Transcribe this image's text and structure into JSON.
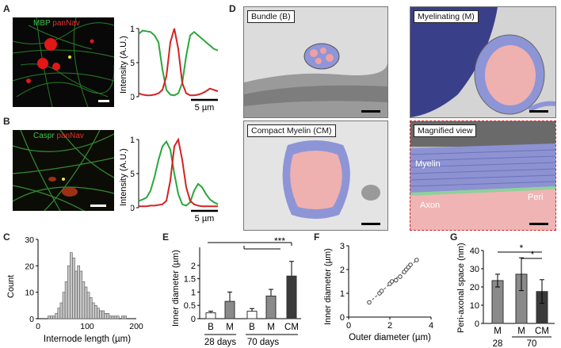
{
  "panels": {
    "A": {
      "letter": "A",
      "stain_1": "MBP",
      "stain_2": "panNav",
      "ylabel": "Intensity (A.U.)",
      "yticks": [
        "0",
        "0.5",
        "1"
      ],
      "scale": "5 µm"
    },
    "B": {
      "letter": "B",
      "stain_1": "Caspr",
      "stain_2": "panNav",
      "ylabel": "Intensity (A.U.)",
      "yticks": [
        "0",
        "0.5",
        "1"
      ],
      "scale": "5 µm"
    },
    "C": {
      "letter": "C",
      "xlabel": "Internode length (µm)",
      "ylabel": "Count"
    },
    "D": {
      "letter": "D",
      "titles": [
        "Bundle (B)",
        "Myelinating (M)",
        "Compact Myelin (CM)",
        "Magnified view"
      ],
      "labels": {
        "myelin": "Myelin",
        "peri": "Peri",
        "axon": "Axon"
      }
    },
    "E": {
      "letter": "E",
      "ylabel": "Inner diameter (µm)",
      "groups": [
        "28 days",
        "70 days"
      ],
      "significance": "***"
    },
    "F": {
      "letter": "F",
      "xlabel": "Outer diameter (µm)",
      "ylabel": "Inner diameter (µm)"
    },
    "G": {
      "letter": "G",
      "ylabel": "Peri-axonal space (nm)",
      "groups": [
        "28",
        "70"
      ],
      "significance": [
        "*",
        "*"
      ]
    }
  },
  "colors": {
    "green": "#2aa63a",
    "red": "#d42222",
    "myelin_overlay": "#7f86d6",
    "axon_overlay": "#f1a3a3",
    "peri_overlay": "#8fd19a"
  },
  "chart_data": [
    {
      "type": "line",
      "panel": "A",
      "title": "",
      "xlabel": "",
      "ylabel": "Intensity (A.U.)",
      "ylim": [
        0,
        1
      ],
      "x": [
        0,
        1,
        2,
        3,
        4,
        5,
        6,
        7,
        8,
        9,
        10,
        11,
        12,
        13,
        14,
        15,
        16,
        17,
        18,
        19,
        20
      ],
      "series": [
        {
          "color": "green",
          "values": [
            0.92,
            0.97,
            0.96,
            0.95,
            0.9,
            0.8,
            0.4,
            0.1,
            0.03,
            0.02,
            0.05,
            0.2,
            0.6,
            0.9,
            0.95,
            0.9,
            0.85,
            0.8,
            0.75,
            0.7,
            0.68
          ]
        },
        {
          "color": "red",
          "values": [
            0.05,
            0.03,
            0.02,
            0.02,
            0.03,
            0.05,
            0.1,
            0.3,
            0.8,
            1.0,
            0.7,
            0.2,
            0.05,
            0.02,
            0.02,
            0.03,
            0.05,
            0.08,
            0.12,
            0.1,
            0.08
          ]
        }
      ]
    },
    {
      "type": "line",
      "panel": "B",
      "title": "",
      "xlabel": "",
      "ylabel": "Intensity (A.U.)",
      "ylim": [
        0,
        1
      ],
      "x": [
        0,
        1,
        2,
        3,
        4,
        5,
        6,
        7,
        8,
        9,
        10,
        11,
        12,
        13,
        14,
        15,
        16,
        17,
        18,
        19,
        20
      ],
      "series": [
        {
          "color": "green",
          "values": [
            0.1,
            0.12,
            0.15,
            0.25,
            0.45,
            0.7,
            0.9,
            0.97,
            0.85,
            0.5,
            0.2,
            0.05,
            0.03,
            0.08,
            0.25,
            0.35,
            0.3,
            0.2,
            0.12,
            0.08,
            0.05
          ]
        },
        {
          "color": "red",
          "values": [
            0.02,
            0.02,
            0.02,
            0.03,
            0.03,
            0.04,
            0.05,
            0.1,
            0.4,
            0.9,
            1.0,
            0.7,
            0.3,
            0.1,
            0.05,
            0.03,
            0.02,
            0.02,
            0.02,
            0.02,
            0.02
          ]
        }
      ]
    },
    {
      "type": "bar",
      "panel": "C",
      "title": "",
      "xlabel": "Internode length (µm)",
      "ylabel": "Count",
      "xlim": [
        0,
        200
      ],
      "ylim": [
        0,
        30
      ],
      "xticks": [
        0,
        100,
        200
      ],
      "yticks": [
        0,
        10,
        20,
        30
      ],
      "bin_width": 5,
      "bins": [
        20,
        25,
        30,
        35,
        40,
        45,
        50,
        55,
        60,
        65,
        70,
        75,
        80,
        85,
        90,
        95,
        100,
        105,
        110,
        115,
        120,
        125,
        130,
        135,
        140,
        145,
        150,
        155,
        160,
        165,
        170,
        175
      ],
      "values": [
        1,
        1,
        1,
        2,
        4,
        6,
        10,
        14,
        20,
        25,
        23,
        18,
        20,
        18,
        14,
        12,
        10,
        8,
        6,
        5,
        4,
        3,
        3,
        2,
        2,
        1,
        1,
        1,
        1,
        0,
        1,
        1
      ]
    },
    {
      "type": "bar",
      "panel": "E",
      "title": "",
      "xlabel": "",
      "ylabel": "Inner diameter (µm)",
      "ylim": [
        0,
        2.5
      ],
      "yticks": [
        0,
        0.5,
        1,
        1.5,
        2
      ],
      "categories": [
        "B",
        "M",
        "B",
        "M",
        "CM"
      ],
      "values": [
        0.22,
        0.65,
        0.28,
        0.85,
        1.6
      ],
      "errors": [
        0.06,
        0.35,
        0.1,
        0.25,
        0.55
      ],
      "colors": [
        "#ffffff",
        "#8a8a8a",
        "#ffffff",
        "#8a8a8a",
        "#3a3a3a"
      ]
    },
    {
      "type": "scatter",
      "panel": "F",
      "title": "",
      "xlabel": "Outer diameter (µm)",
      "ylabel": "Inner diameter (µm)",
      "xlim": [
        0,
        4
      ],
      "ylim": [
        0,
        3
      ],
      "xticks": [
        0,
        2,
        4
      ],
      "yticks": [
        0,
        1,
        2,
        3
      ],
      "points": [
        [
          1.0,
          0.62
        ],
        [
          1.5,
          1.0
        ],
        [
          1.6,
          1.1
        ],
        [
          2.0,
          1.4
        ],
        [
          2.1,
          1.5
        ],
        [
          2.3,
          1.55
        ],
        [
          2.5,
          1.7
        ],
        [
          2.7,
          1.9
        ],
        [
          2.8,
          2.0
        ],
        [
          2.9,
          2.1
        ],
        [
          3.0,
          2.2
        ],
        [
          3.3,
          2.4
        ]
      ],
      "trendline": [
        [
          1.0,
          0.62
        ],
        [
          3.3,
          2.4
        ]
      ]
    },
    {
      "type": "bar",
      "panel": "G",
      "title": "",
      "xlabel": "",
      "ylabel": "Peri-axonal space (nm)",
      "ylim": [
        0,
        40
      ],
      "yticks": [
        0,
        10,
        20,
        30,
        40
      ],
      "categories": [
        "M",
        "M",
        "CM"
      ],
      "values": [
        23.5,
        27,
        17.5
      ],
      "errors": [
        3.5,
        9,
        6.5
      ],
      "colors": [
        "#8a8a8a",
        "#8a8a8a",
        "#3a3a3a"
      ]
    }
  ]
}
